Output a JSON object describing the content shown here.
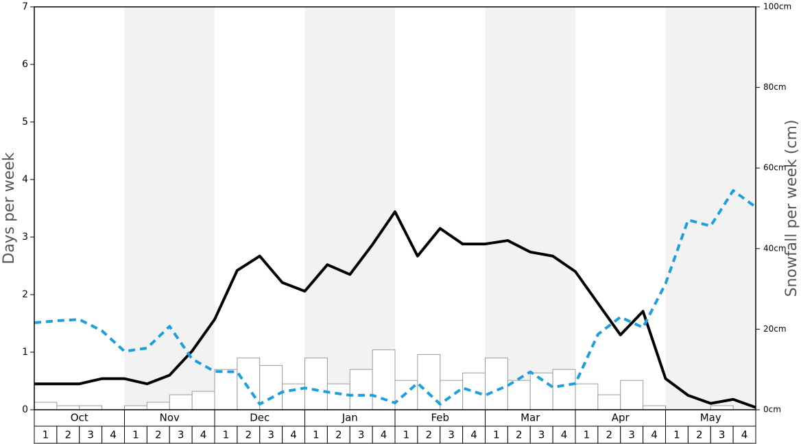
{
  "chart_data": {
    "type": "bar",
    "ylabel": "Days per week",
    "y2label": "Snowfall per week (cm)",
    "months": [
      "Oct",
      "Nov",
      "Dec",
      "Jan",
      "Feb",
      "Mar",
      "Apr",
      "May"
    ],
    "weeks": [
      "1",
      "2",
      "3",
      "4"
    ],
    "ylim": [
      0,
      7
    ],
    "yticks": [
      0,
      1,
      2,
      3,
      4,
      5,
      6,
      7
    ],
    "y2lim": [
      0,
      100
    ],
    "y2ticks": [
      {
        "value": 0,
        "label": "0cm"
      },
      {
        "value": 20,
        "label": "20cm"
      },
      {
        "value": 40,
        "label": "40cm"
      },
      {
        "value": 60,
        "label": "60cm"
      },
      {
        "value": 80,
        "label": "80cm"
      },
      {
        "value": 100,
        "label": "100cm"
      }
    ],
    "bars": {
      "color": "#ffffff",
      "values": [
        0.13,
        0.07,
        0.07,
        0,
        0.07,
        0.13,
        0.26,
        0.32,
        0.7,
        0.9,
        0.77,
        0.45,
        0.9,
        0.45,
        0.7,
        1.04,
        0.51,
        0.96,
        0.51,
        0.64,
        0.9,
        0.51,
        0.64,
        0.7,
        0.45,
        0.26,
        0.51,
        0.07,
        0,
        0,
        0.07,
        0
      ]
    },
    "series": [
      {
        "color": "#000000",
        "style": "solid",
        "axis": "y",
        "values": [
          0.45,
          0.45,
          0.45,
          0.54,
          0.54,
          0.45,
          0.6,
          1.02,
          1.57,
          2.42,
          2.67,
          2.21,
          2.06,
          2.52,
          2.35,
          2.87,
          3.44,
          2.67,
          3.15,
          2.88,
          2.88,
          2.94,
          2.74,
          2.67,
          2.4,
          1.85,
          1.3,
          1.71,
          0.54,
          0.25,
          0.11,
          0.18,
          0.04
        ]
      },
      {
        "color": "#1a9fe0",
        "style": "dashed",
        "axis": "y2",
        "values": [
          21.6,
          22.1,
          22.4,
          19.6,
          14.5,
          15.3,
          20.7,
          12.6,
          9.5,
          9.4,
          1.4,
          4.4,
          5.4,
          4.4,
          3.6,
          3.6,
          1.7,
          6.6,
          1.4,
          5.4,
          3.6,
          6,
          9.4,
          5.6,
          6.5,
          18.7,
          23,
          20.4,
          31.3,
          47.1,
          45.6,
          54.4,
          50.3
        ]
      }
    ]
  }
}
